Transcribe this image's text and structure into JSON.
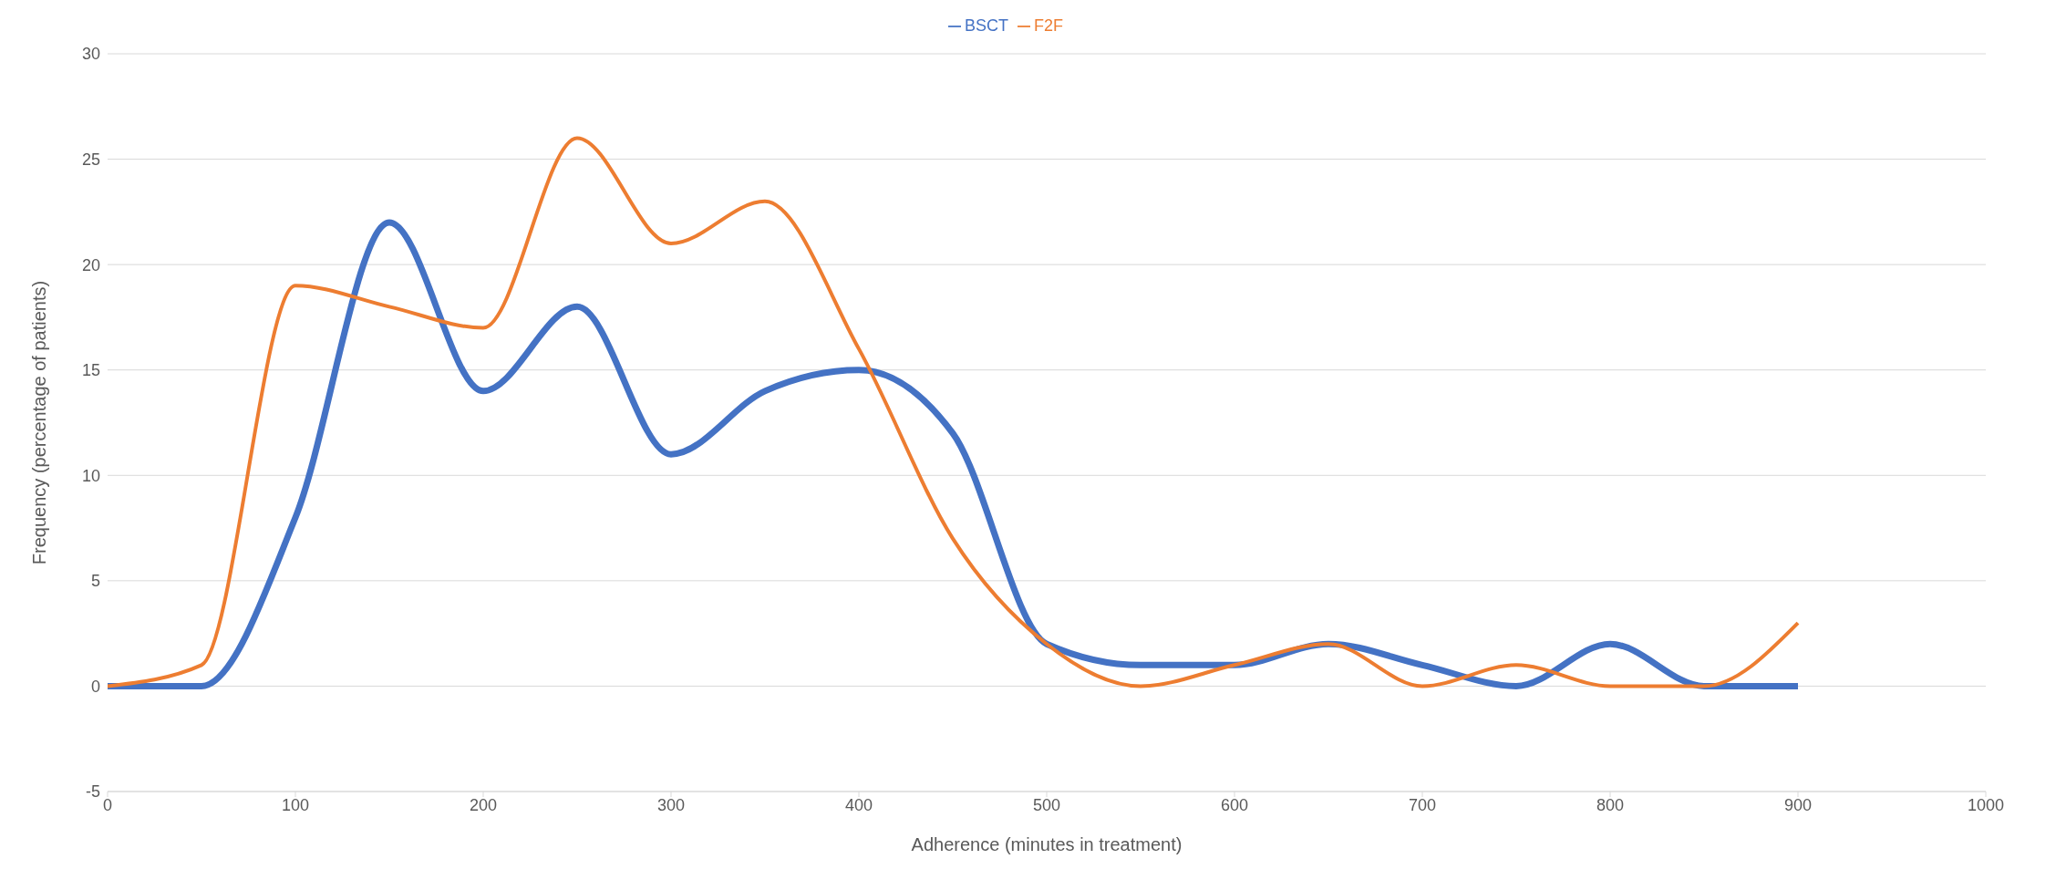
{
  "chart_data": {
    "type": "line",
    "xlabel": "Adherence (minutes in treatment)",
    "ylabel": "Frequency (percentage of patients)",
    "x": [
      0,
      50,
      100,
      150,
      200,
      250,
      300,
      350,
      400,
      450,
      500,
      550,
      600,
      650,
      700,
      750,
      800,
      850,
      900
    ],
    "series": [
      {
        "name": "BSCT",
        "color": "#4472c4",
        "values": [
          0,
          0,
          8,
          22,
          14,
          18,
          11,
          14,
          15,
          12,
          2,
          1,
          1,
          2,
          1,
          0,
          2,
          0,
          0
        ]
      },
      {
        "name": "F2F",
        "color": "#ed7d31",
        "values": [
          0,
          1,
          19,
          18,
          17,
          26,
          21,
          23,
          16,
          7,
          2,
          0,
          1,
          2,
          0,
          1,
          0,
          0,
          3
        ]
      }
    ],
    "xlim": [
      0,
      1000
    ],
    "xticks": [
      0,
      100,
      200,
      300,
      400,
      500,
      600,
      700,
      800,
      900,
      1000
    ],
    "ylim": [
      -5,
      30
    ],
    "yticks": [
      -5,
      0,
      5,
      10,
      15,
      20,
      25,
      30
    ],
    "grid": "y",
    "legend": "top",
    "marker": "none",
    "line_style": "solid"
  }
}
